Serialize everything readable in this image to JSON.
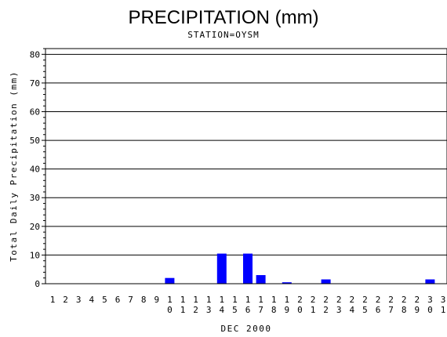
{
  "chart_data": {
    "type": "bar",
    "title": "PRECIPITATION (mm)",
    "subtitle": "STATION=OYSM",
    "xlabel": "DEC 2000",
    "ylabel": "Total Daily Precipitation (mm)",
    "ylim": [
      0,
      82
    ],
    "yticks": [
      0,
      10,
      20,
      30,
      40,
      50,
      60,
      70,
      80
    ],
    "grid": true,
    "bar_color": "#0000ff",
    "categories": [
      "1",
      "2",
      "3",
      "4",
      "5",
      "6",
      "7",
      "8",
      "9",
      "10",
      "11",
      "12",
      "13",
      "14",
      "15",
      "16",
      "17",
      "18",
      "19",
      "20",
      "21",
      "22",
      "23",
      "24",
      "25",
      "26",
      "27",
      "28",
      "29",
      "30",
      "31"
    ],
    "values": [
      0,
      0,
      0,
      0,
      0,
      0,
      0,
      0,
      0,
      2.0,
      0,
      0,
      0,
      10.5,
      0,
      10.5,
      3.0,
      0,
      0.5,
      0,
      0,
      1.5,
      0,
      0,
      0,
      0,
      0,
      0,
      0,
      1.5,
      0
    ]
  }
}
